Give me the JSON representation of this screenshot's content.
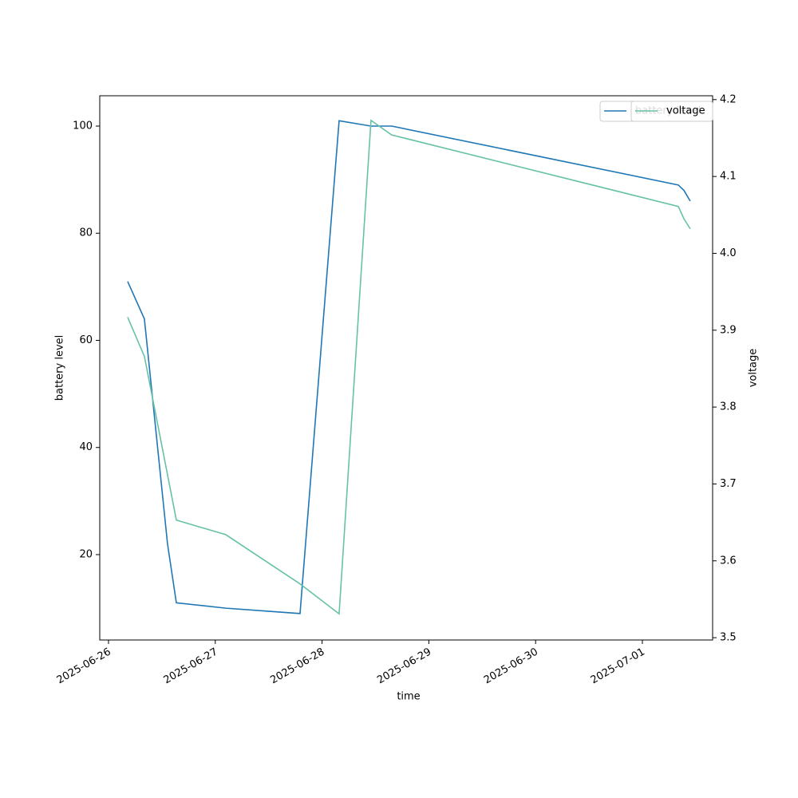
{
  "chart_data": {
    "type": "line",
    "x_label": "time",
    "y_label": "battery level",
    "y2_label": "voltage",
    "x": [
      "2025-06-26T04:18",
      "2025-06-26T08:04",
      "2025-06-26T13:16",
      "2025-06-26T15:15",
      "2025-06-27T02:22",
      "2025-06-27T19:03",
      "2025-06-28T03:50",
      "2025-06-28T11:00",
      "2025-06-28T15:40",
      "2025-07-01T08:04",
      "2025-07-01T09:20",
      "2025-07-01T10:45"
    ],
    "series": [
      {
        "name": "battery level",
        "color": "#1f77b4",
        "values": [
          71,
          64,
          22,
          11,
          10,
          9,
          101,
          100,
          100,
          89,
          88,
          86
        ]
      },
      {
        "name": "voltage",
        "color": "#66c2a5",
        "axis": "y2",
        "values": [
          3.917,
          3.866,
          3.712,
          3.653,
          3.634,
          3.57,
          3.531,
          4.173,
          4.154,
          4.061,
          4.045,
          4.032
        ]
      }
    ],
    "xlim": [
      "2025-06-25T22:02",
      "2025-07-01T15:47"
    ],
    "xticks": [
      "2025-06-26",
      "2025-06-27",
      "2025-06-28",
      "2025-06-29",
      "2025-06-30",
      "2025-07-01"
    ],
    "ylim": [
      4.06,
      105.66
    ],
    "yticks": [
      20,
      40,
      60,
      80,
      100
    ],
    "y2lim": [
      3.497,
      4.205
    ],
    "y2ticks": [
      3.5,
      3.6,
      3.7,
      3.8,
      3.9,
      {
        "value": 4,
        "label": "4.0"
      },
      4.1,
      4.2
    ],
    "legend": "upper right"
  }
}
